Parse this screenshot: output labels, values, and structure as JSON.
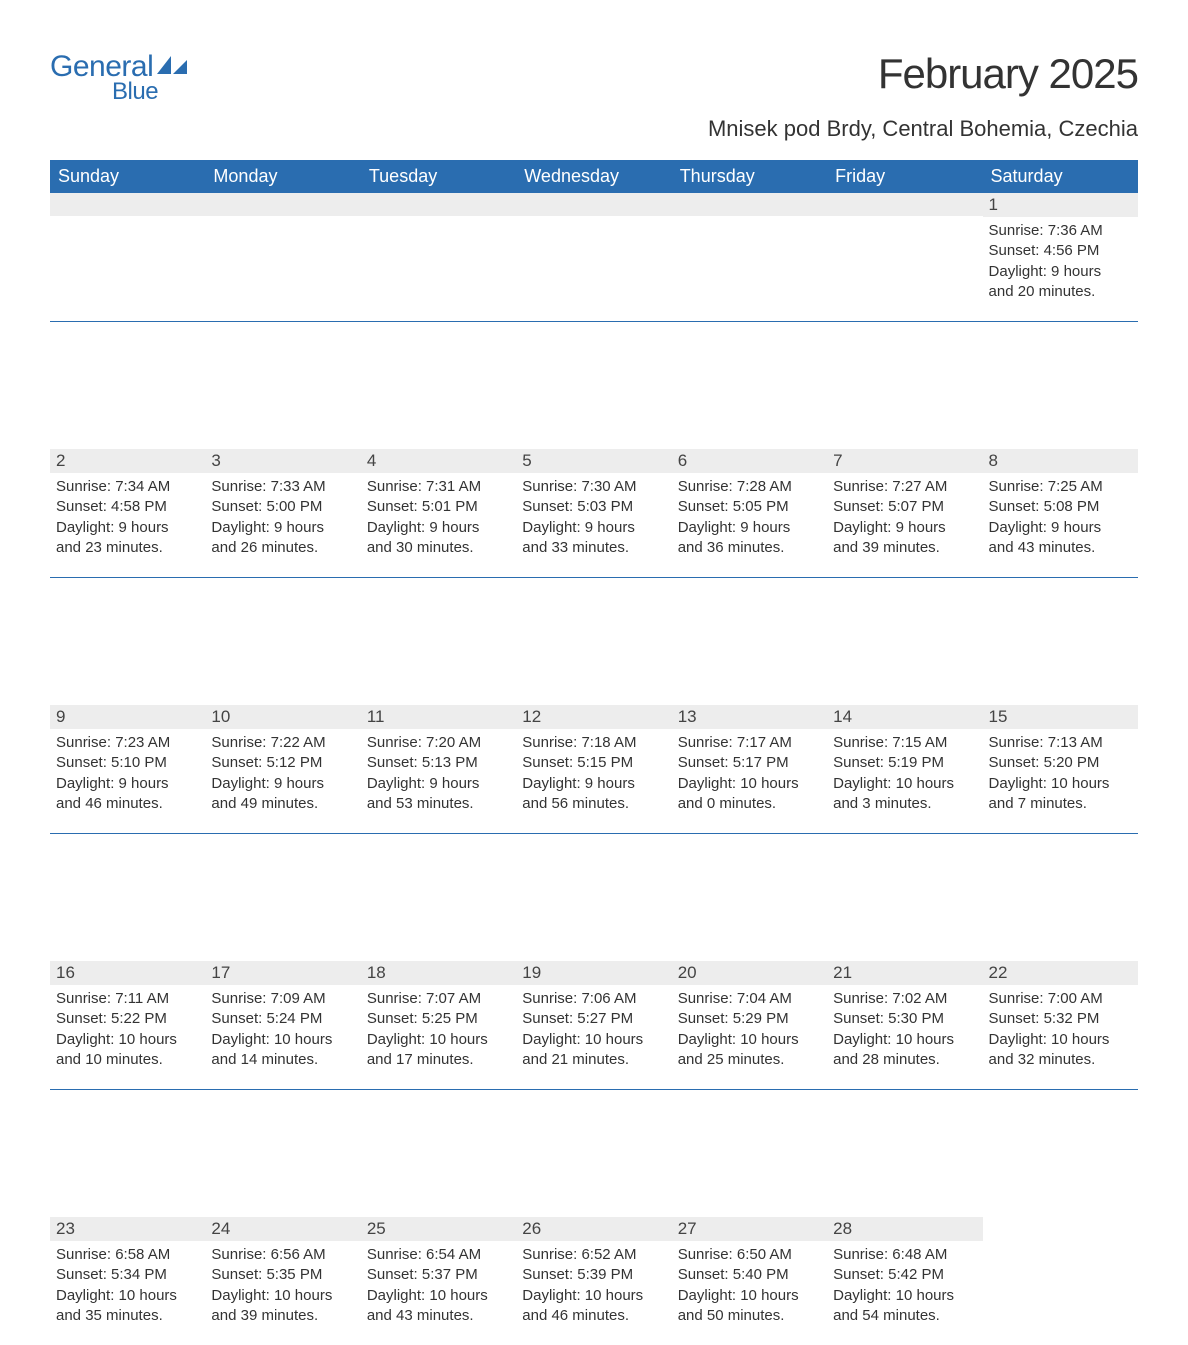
{
  "logo": {
    "word1": "General",
    "word2": "Blue"
  },
  "title": "February 2025",
  "location": "Mnisek pod Brdy, Central Bohemia, Czechia",
  "colors": {
    "brand_blue": "#2a6db0",
    "header_bg": "#2a6db0",
    "header_text": "#ffffff",
    "daynum_bg": "#ededed",
    "text": "#333333",
    "background": "#ffffff"
  },
  "day_headers": [
    "Sunday",
    "Monday",
    "Tuesday",
    "Wednesday",
    "Thursday",
    "Friday",
    "Saturday"
  ],
  "weeks": [
    [
      {
        "blank": true
      },
      {
        "blank": true
      },
      {
        "blank": true
      },
      {
        "blank": true
      },
      {
        "blank": true
      },
      {
        "blank": true
      },
      {
        "n": "1",
        "sunrise": "Sunrise: 7:36 AM",
        "sunset": "Sunset: 4:56 PM",
        "dl1": "Daylight: 9 hours",
        "dl2": "and 20 minutes."
      }
    ],
    [
      {
        "n": "2",
        "sunrise": "Sunrise: 7:34 AM",
        "sunset": "Sunset: 4:58 PM",
        "dl1": "Daylight: 9 hours",
        "dl2": "and 23 minutes."
      },
      {
        "n": "3",
        "sunrise": "Sunrise: 7:33 AM",
        "sunset": "Sunset: 5:00 PM",
        "dl1": "Daylight: 9 hours",
        "dl2": "and 26 minutes."
      },
      {
        "n": "4",
        "sunrise": "Sunrise: 7:31 AM",
        "sunset": "Sunset: 5:01 PM",
        "dl1": "Daylight: 9 hours",
        "dl2": "and 30 minutes."
      },
      {
        "n": "5",
        "sunrise": "Sunrise: 7:30 AM",
        "sunset": "Sunset: 5:03 PM",
        "dl1": "Daylight: 9 hours",
        "dl2": "and 33 minutes."
      },
      {
        "n": "6",
        "sunrise": "Sunrise: 7:28 AM",
        "sunset": "Sunset: 5:05 PM",
        "dl1": "Daylight: 9 hours",
        "dl2": "and 36 minutes."
      },
      {
        "n": "7",
        "sunrise": "Sunrise: 7:27 AM",
        "sunset": "Sunset: 5:07 PM",
        "dl1": "Daylight: 9 hours",
        "dl2": "and 39 minutes."
      },
      {
        "n": "8",
        "sunrise": "Sunrise: 7:25 AM",
        "sunset": "Sunset: 5:08 PM",
        "dl1": "Daylight: 9 hours",
        "dl2": "and 43 minutes."
      }
    ],
    [
      {
        "n": "9",
        "sunrise": "Sunrise: 7:23 AM",
        "sunset": "Sunset: 5:10 PM",
        "dl1": "Daylight: 9 hours",
        "dl2": "and 46 minutes."
      },
      {
        "n": "10",
        "sunrise": "Sunrise: 7:22 AM",
        "sunset": "Sunset: 5:12 PM",
        "dl1": "Daylight: 9 hours",
        "dl2": "and 49 minutes."
      },
      {
        "n": "11",
        "sunrise": "Sunrise: 7:20 AM",
        "sunset": "Sunset: 5:13 PM",
        "dl1": "Daylight: 9 hours",
        "dl2": "and 53 minutes."
      },
      {
        "n": "12",
        "sunrise": "Sunrise: 7:18 AM",
        "sunset": "Sunset: 5:15 PM",
        "dl1": "Daylight: 9 hours",
        "dl2": "and 56 minutes."
      },
      {
        "n": "13",
        "sunrise": "Sunrise: 7:17 AM",
        "sunset": "Sunset: 5:17 PM",
        "dl1": "Daylight: 10 hours",
        "dl2": "and 0 minutes."
      },
      {
        "n": "14",
        "sunrise": "Sunrise: 7:15 AM",
        "sunset": "Sunset: 5:19 PM",
        "dl1": "Daylight: 10 hours",
        "dl2": "and 3 minutes."
      },
      {
        "n": "15",
        "sunrise": "Sunrise: 7:13 AM",
        "sunset": "Sunset: 5:20 PM",
        "dl1": "Daylight: 10 hours",
        "dl2": "and 7 minutes."
      }
    ],
    [
      {
        "n": "16",
        "sunrise": "Sunrise: 7:11 AM",
        "sunset": "Sunset: 5:22 PM",
        "dl1": "Daylight: 10 hours",
        "dl2": "and 10 minutes."
      },
      {
        "n": "17",
        "sunrise": "Sunrise: 7:09 AM",
        "sunset": "Sunset: 5:24 PM",
        "dl1": "Daylight: 10 hours",
        "dl2": "and 14 minutes."
      },
      {
        "n": "18",
        "sunrise": "Sunrise: 7:07 AM",
        "sunset": "Sunset: 5:25 PM",
        "dl1": "Daylight: 10 hours",
        "dl2": "and 17 minutes."
      },
      {
        "n": "19",
        "sunrise": "Sunrise: 7:06 AM",
        "sunset": "Sunset: 5:27 PM",
        "dl1": "Daylight: 10 hours",
        "dl2": "and 21 minutes."
      },
      {
        "n": "20",
        "sunrise": "Sunrise: 7:04 AM",
        "sunset": "Sunset: 5:29 PM",
        "dl1": "Daylight: 10 hours",
        "dl2": "and 25 minutes."
      },
      {
        "n": "21",
        "sunrise": "Sunrise: 7:02 AM",
        "sunset": "Sunset: 5:30 PM",
        "dl1": "Daylight: 10 hours",
        "dl2": "and 28 minutes."
      },
      {
        "n": "22",
        "sunrise": "Sunrise: 7:00 AM",
        "sunset": "Sunset: 5:32 PM",
        "dl1": "Daylight: 10 hours",
        "dl2": "and 32 minutes."
      }
    ],
    [
      {
        "n": "23",
        "sunrise": "Sunrise: 6:58 AM",
        "sunset": "Sunset: 5:34 PM",
        "dl1": "Daylight: 10 hours",
        "dl2": "and 35 minutes."
      },
      {
        "n": "24",
        "sunrise": "Sunrise: 6:56 AM",
        "sunset": "Sunset: 5:35 PM",
        "dl1": "Daylight: 10 hours",
        "dl2": "and 39 minutes."
      },
      {
        "n": "25",
        "sunrise": "Sunrise: 6:54 AM",
        "sunset": "Sunset: 5:37 PM",
        "dl1": "Daylight: 10 hours",
        "dl2": "and 43 minutes."
      },
      {
        "n": "26",
        "sunrise": "Sunrise: 6:52 AM",
        "sunset": "Sunset: 5:39 PM",
        "dl1": "Daylight: 10 hours",
        "dl2": "and 46 minutes."
      },
      {
        "n": "27",
        "sunrise": "Sunrise: 6:50 AM",
        "sunset": "Sunset: 5:40 PM",
        "dl1": "Daylight: 10 hours",
        "dl2": "and 50 minutes."
      },
      {
        "n": "28",
        "sunrise": "Sunrise: 6:48 AM",
        "sunset": "Sunset: 5:42 PM",
        "dl1": "Daylight: 10 hours",
        "dl2": "and 54 minutes."
      },
      {
        "blank": true,
        "no_bg": true
      }
    ]
  ]
}
